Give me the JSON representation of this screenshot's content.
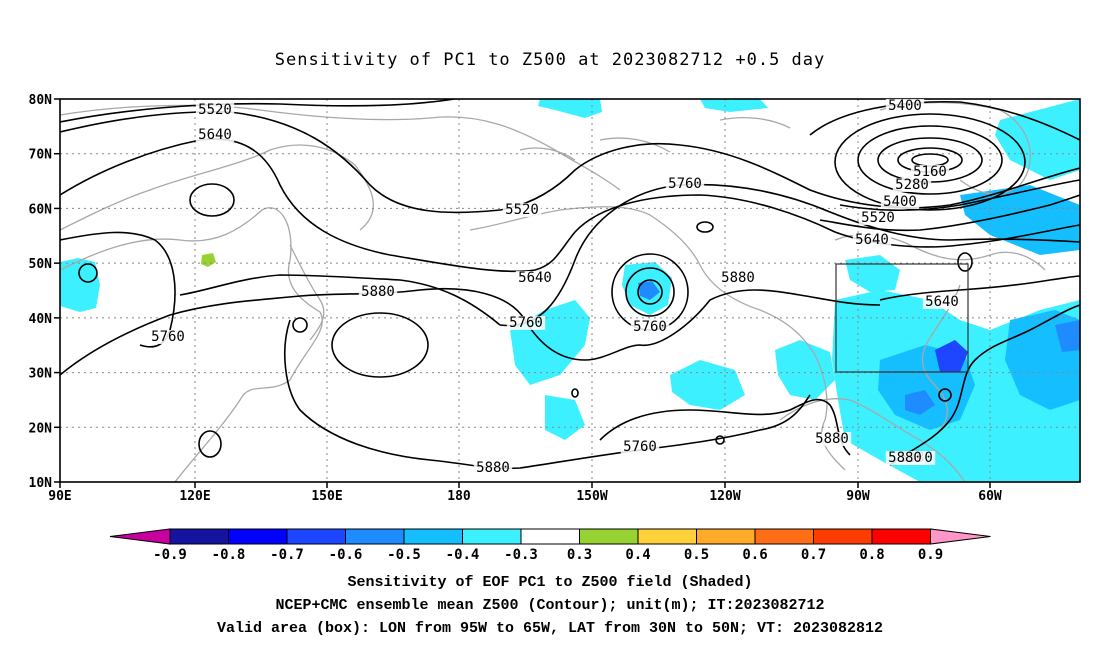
{
  "title": "Sensitivity of PC1 to Z500 at 2023082712 +0.5 day",
  "axes": {
    "lat_ticks": [
      "80N",
      "70N",
      "60N",
      "50N",
      "40N",
      "30N",
      "20N",
      "10N"
    ],
    "lon_ticks": [
      "90E",
      "120E",
      "150E",
      "180",
      "150W",
      "120W",
      "90W",
      "60W"
    ]
  },
  "contour_labels": [
    "5400",
    "5520",
    "5640",
    "5160",
    "5280",
    "5400",
    "5520",
    "5760",
    "5520",
    "5640",
    "5880",
    "5640",
    "5760",
    "5760",
    "5880",
    "5760",
    "5640",
    "5760",
    "5880",
    "5880",
    "5880",
    "5880"
  ],
  "colorbar": {
    "labels": [
      "-0.9",
      "-0.8",
      "-0.7",
      "-0.6",
      "-0.5",
      "-0.4",
      "-0.3",
      "0.3",
      "0.4",
      "0.5",
      "0.6",
      "0.7",
      "0.8",
      "0.9"
    ],
    "colors": [
      "#1414a0",
      "#0000ff",
      "#1e46ff",
      "#1e8cff",
      "#14beff",
      "#3cf0ff",
      "#ffffff",
      "#96d232",
      "#ffd23c",
      "#ffaa28",
      "#ff6e14",
      "#ff3c00",
      "#ff0000"
    ],
    "left_end_color": "#c800a0",
    "right_end_color": "#ff96c8"
  },
  "captions": [
    "Sensitivity of EOF PC1 to Z500 field (Shaded)",
    "NCEP+CMC ensemble mean Z500 (Contour); unit(m); IT:2023082712",
    "Valid area (box): LON from 95W to 65W, LAT from 30N to 50N; VT: 2023082812"
  ],
  "colors": {
    "shade_light": "#3cf0ff",
    "shade_mid": "#14beff",
    "shade_dark": "#1e8cff",
    "shade_darkest": "#1e46ff",
    "shade_positive": "#96d232",
    "coast": "#a8a8a8",
    "contour": "#000000"
  }
}
